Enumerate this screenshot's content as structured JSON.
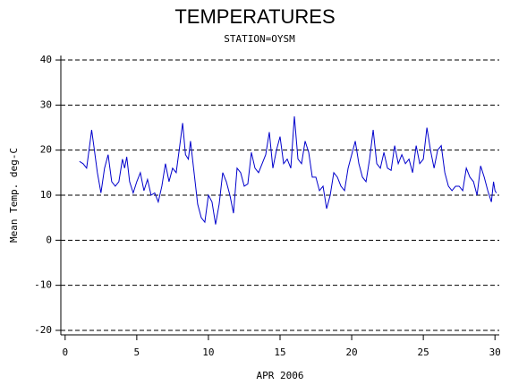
{
  "chart_data": {
    "type": "line",
    "title": "TEMPERATURES",
    "subtitle": "STATION=OYSM",
    "x_label": "APR 2006",
    "y_label": "Mean Temp. deg-C",
    "xlim": [
      -0.3,
      30.3
    ],
    "xticks": [
      0,
      5,
      10,
      15,
      20,
      25,
      30
    ],
    "ylim": [
      -21,
      41
    ],
    "yticks": [
      -20,
      -10,
      0,
      10,
      20,
      30,
      40
    ],
    "grid": true,
    "series": [
      {
        "color": "#0000cc",
        "x": [
          1,
          1.25,
          1.5,
          1.75,
          1.85,
          2,
          2.25,
          2.5,
          2.75,
          3,
          3.25,
          3.5,
          3.75,
          4,
          4.15,
          4.3,
          4.5,
          4.75,
          5,
          5.25,
          5.5,
          5.75,
          6,
          6.25,
          6.5,
          6.75,
          7,
          7.25,
          7.5,
          7.75,
          8,
          8.2,
          8.4,
          8.6,
          8.75,
          9,
          9.25,
          9.5,
          9.75,
          10,
          10.25,
          10.5,
          10.75,
          11,
          11.25,
          11.5,
          11.75,
          12,
          12.25,
          12.5,
          12.75,
          13,
          13.25,
          13.5,
          13.75,
          14,
          14.25,
          14.5,
          14.75,
          15,
          15.25,
          15.5,
          15.75,
          16,
          16.25,
          16.5,
          16.75,
          17,
          17.25,
          17.5,
          17.75,
          18,
          18.25,
          18.5,
          18.75,
          19,
          19.25,
          19.5,
          19.75,
          20,
          20.25,
          20.5,
          20.75,
          21,
          21.25,
          21.5,
          21.75,
          22,
          22.25,
          22.5,
          22.75,
          23,
          23.25,
          23.5,
          23.75,
          24,
          24.25,
          24.5,
          24.75,
          25,
          25.25,
          25.5,
          25.75,
          26,
          26.25,
          26.5,
          26.75,
          27,
          27.25,
          27.5,
          27.75,
          28,
          28.25,
          28.5,
          28.75,
          29,
          29.25,
          29.5,
          29.75,
          29.9,
          30,
          30.1
        ],
        "values": [
          17.5,
          17,
          16,
          22,
          24.5,
          21,
          15,
          10.5,
          16,
          19,
          13,
          12,
          13,
          18,
          16,
          18.5,
          13,
          10.5,
          13,
          15,
          11,
          13.5,
          10,
          10.5,
          8.5,
          12,
          17,
          13,
          16,
          15,
          21,
          26,
          19,
          18,
          22,
          15,
          8,
          5,
          4,
          10,
          8.5,
          3.5,
          8,
          15,
          13,
          10,
          6,
          16,
          15,
          12,
          12.5,
          19.5,
          16,
          15,
          17,
          19,
          24,
          16,
          20,
          23,
          17,
          18,
          16,
          27.5,
          18,
          17,
          22,
          19.5,
          14,
          14,
          11,
          12,
          7,
          10,
          15,
          14,
          12,
          11,
          16,
          19,
          22,
          17,
          14,
          13,
          18,
          24.5,
          17,
          16,
          19.5,
          16,
          15.5,
          21,
          17,
          19,
          17,
          18,
          15,
          21,
          17,
          18,
          25,
          20,
          16,
          20,
          21,
          15,
          12,
          11,
          12,
          12,
          11,
          16,
          14,
          13,
          10,
          16.5,
          14,
          11,
          8.5,
          13,
          11,
          10.5
        ]
      }
    ]
  }
}
